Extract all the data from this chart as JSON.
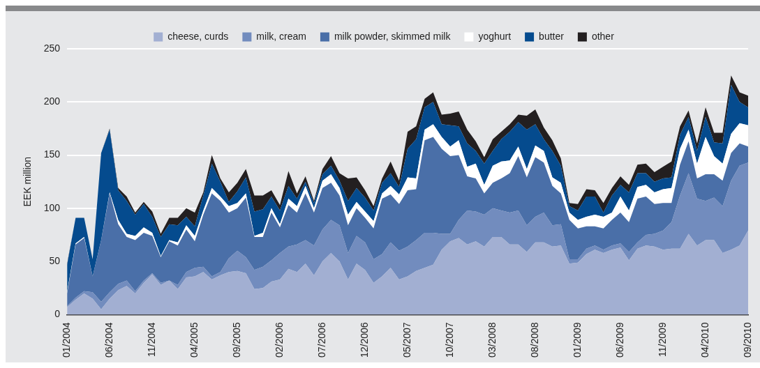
{
  "chart_data": {
    "type": "area",
    "stacked": true,
    "ylabel": "EEK million",
    "ylim": [
      0,
      250
    ],
    "yticks": [
      0,
      50,
      100,
      150,
      200,
      250
    ],
    "grid": "y",
    "legend": "top",
    "marker": "none",
    "categories": [
      "01/2004",
      null,
      null,
      null,
      null,
      "06/2004",
      null,
      null,
      null,
      null,
      "11/2004",
      null,
      null,
      null,
      null,
      "04/2005",
      null,
      null,
      null,
      null,
      "09/2005",
      null,
      null,
      null,
      null,
      "02/2006",
      null,
      null,
      null,
      null,
      "07/2006",
      null,
      null,
      null,
      null,
      "12/2006",
      null,
      null,
      null,
      null,
      "05/2007",
      null,
      null,
      null,
      null,
      "10/2007",
      null,
      null,
      null,
      null,
      "03/2008",
      null,
      null,
      null,
      null,
      "08/2008",
      null,
      null,
      null,
      null,
      "01/2009",
      null,
      null,
      null,
      null,
      "06/2009",
      null,
      null,
      null,
      null,
      "11/2009",
      null,
      null,
      null,
      null,
      "04/2010",
      null,
      null,
      null,
      null,
      "09/2010"
    ],
    "series": [
      {
        "name": "cheese, curds",
        "color": "#a2afd2",
        "values": [
          7,
          14,
          20,
          15,
          5,
          15,
          23,
          27,
          20,
          30,
          38,
          28,
          32,
          24,
          35,
          36,
          40,
          33,
          37,
          40,
          41,
          39,
          24,
          25,
          31,
          33,
          43,
          40,
          48,
          37,
          50,
          58,
          50,
          33,
          48,
          42,
          30,
          36,
          44,
          33,
          36,
          41,
          44,
          47,
          61,
          69,
          72,
          66,
          69,
          64,
          73,
          73,
          66,
          66,
          59,
          68,
          68,
          64,
          65,
          48,
          49,
          57,
          61,
          58,
          61,
          63,
          51,
          62,
          65,
          64,
          61,
          62,
          62,
          76,
          65,
          70,
          70,
          58,
          61,
          65,
          79
        ]
      },
      {
        "name": "milk, cream",
        "color": "#728cbe",
        "values": [
          1,
          2,
          2,
          6,
          7,
          6,
          6,
          5,
          2,
          2,
          1,
          2,
          0,
          4,
          5,
          8,
          5,
          3,
          3,
          13,
          19,
          15,
          18,
          20,
          20,
          25,
          21,
          26,
          22,
          28,
          30,
          31,
          34,
          25,
          26,
          26,
          22,
          21,
          24,
          27,
          28,
          29,
          33,
          30,
          15,
          7,
          17,
          32,
          28,
          30,
          27,
          25,
          30,
          32,
          25,
          24,
          28,
          20,
          20,
          4,
          3,
          5,
          4,
          3,
          4,
          4,
          8,
          6,
          10,
          12,
          18,
          25,
          50,
          57,
          44,
          37,
          40,
          44,
          65,
          75,
          64
        ]
      },
      {
        "name": "milk powder, skimmed milk",
        "color": "#4a6fa8",
        "values": [
          12,
          50,
          50,
          15,
          58,
          93,
          56,
          41,
          48,
          45,
          35,
          24,
          37,
          37,
          40,
          25,
          49,
          78,
          67,
          43,
          40,
          56,
          31,
          28,
          45,
          24,
          39,
          30,
          44,
          31,
          39,
          35,
          28,
          26,
          26,
          23,
          29,
          52,
          45,
          44,
          53,
          48,
          87,
          90,
          80,
          73,
          61,
          32,
          31,
          20,
          24,
          30,
          37,
          51,
          45,
          56,
          47,
          37,
          29,
          37,
          29,
          21,
          18,
          20,
          24,
          29,
          28,
          41,
          36,
          28,
          26,
          18,
          29,
          30,
          19,
          25,
          22,
          24,
          26,
          21,
          15
        ]
      },
      {
        "name": "yoghurt",
        "color": "#ffffff",
        "values": [
          1,
          1,
          1,
          0,
          0,
          1,
          4,
          3,
          4,
          5,
          3,
          1,
          1,
          3,
          4,
          5,
          4,
          5,
          4,
          6,
          5,
          4,
          1,
          4,
          4,
          3,
          6,
          6,
          7,
          4,
          7,
          8,
          7,
          10,
          6,
          6,
          7,
          5,
          8,
          9,
          12,
          10,
          10,
          12,
          11,
          9,
          14,
          9,
          14,
          8,
          16,
          16,
          12,
          9,
          8,
          11,
          11,
          8,
          10,
          7,
          8,
          9,
          11,
          11,
          7,
          15,
          11,
          11,
          11,
          11,
          13,
          14,
          15,
          11,
          14,
          35,
          17,
          16,
          18,
          19,
          20
        ]
      },
      {
        "name": "butter",
        "color": "#054b8e",
        "values": [
          26,
          24,
          18,
          16,
          82,
          59,
          28,
          31,
          20,
          22,
          15,
          18,
          15,
          16,
          8,
          9,
          14,
          23,
          14,
          4,
          11,
          15,
          23,
          22,
          11,
          13,
          12,
          7,
          4,
          5,
          6,
          8,
          7,
          13,
          13,
          13,
          10,
          10,
          12,
          7,
          27,
          37,
          21,
          21,
          12,
          20,
          13,
          22,
          12,
          20,
          14,
          21,
          27,
          23,
          37,
          20,
          11,
          25,
          16,
          6,
          9,
          19,
          17,
          4,
          16,
          11,
          17,
          13,
          11,
          10,
          10,
          10,
          13,
          12,
          12,
          19,
          13,
          19,
          46,
          20,
          17
        ]
      },
      {
        "name": "other",
        "color": "#231f20",
        "values": [
          1,
          0,
          0,
          0,
          0,
          1,
          2,
          4,
          2,
          2,
          5,
          3,
          6,
          7,
          8,
          13,
          3,
          8,
          3,
          9,
          8,
          8,
          15,
          13,
          6,
          5,
          14,
          5,
          5,
          2,
          5,
          9,
          7,
          21,
          10,
          7,
          4,
          4,
          11,
          6,
          16,
          12,
          8,
          9,
          9,
          11,
          14,
          13,
          9,
          6,
          11,
          7,
          7,
          7,
          13,
          14,
          11,
          10,
          7,
          3,
          6,
          7,
          6,
          9,
          7,
          8,
          7,
          8,
          9,
          9,
          11,
          15,
          8,
          6,
          7,
          9,
          9,
          10,
          9,
          9,
          11
        ]
      }
    ]
  }
}
